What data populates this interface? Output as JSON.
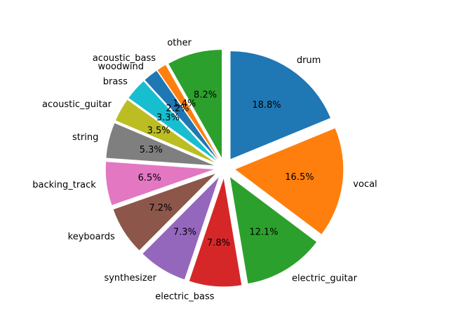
{
  "chart_data": {
    "type": "pie",
    "title": "",
    "start_angle_deg": 90,
    "direction": "clockwise",
    "exploded": true,
    "slices": [
      {
        "label": "drum",
        "value": 18.8,
        "pct_label": "18.8%",
        "color": "#1f77b4"
      },
      {
        "label": "vocal",
        "value": 16.5,
        "pct_label": "16.5%",
        "color": "#ff7f0e"
      },
      {
        "label": "electric_guitar",
        "value": 12.1,
        "pct_label": "12.1%",
        "color": "#2ca02c"
      },
      {
        "label": "electric_bass",
        "value": 7.8,
        "pct_label": "7.8%",
        "color": "#d62728"
      },
      {
        "label": "synthesizer",
        "value": 7.3,
        "pct_label": "7.3%",
        "color": "#9467bd"
      },
      {
        "label": "keyboards",
        "value": 7.2,
        "pct_label": "7.2%",
        "color": "#8c564b"
      },
      {
        "label": "backing_track",
        "value": 6.5,
        "pct_label": "6.5%",
        "color": "#e377c2"
      },
      {
        "label": "string",
        "value": 5.3,
        "pct_label": "5.3%",
        "color": "#7f7f7f"
      },
      {
        "label": "acoustic_guitar",
        "value": 3.5,
        "pct_label": "3.5%",
        "color": "#bcbd22"
      },
      {
        "label": "brass",
        "value": 3.3,
        "pct_label": "3.3%",
        "color": "#17becf"
      },
      {
        "label": "woodwind",
        "value": 2.2,
        "pct_label": "2.2%",
        "color": "#1f77b4"
      },
      {
        "label": "acoustic_bass",
        "value": 1.4,
        "pct_label": "1.4%",
        "color": "#ff7f0e"
      },
      {
        "label": "other",
        "value": 8.2,
        "pct_label": "8.2%",
        "color": "#2ca02c"
      }
    ]
  }
}
